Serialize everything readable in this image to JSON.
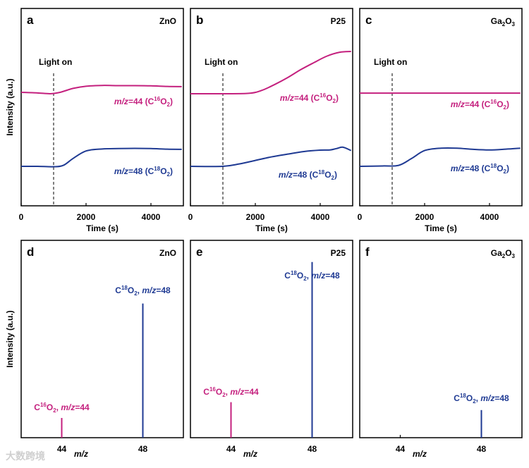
{
  "colors": {
    "pink": "#c4207e",
    "blue": "#1f3a93",
    "axis": "#000000"
  },
  "watermark": "大数跨境",
  "chart_data": [
    {
      "panel": "a",
      "type": "line",
      "material": "ZnO",
      "xlabel": "Time (s)",
      "ylabel": "Intensity (a.u.)",
      "xlim": [
        0,
        5000
      ],
      "ylim": [
        0,
        1
      ],
      "xticks": [
        0,
        2000,
        4000
      ],
      "annotation": "Light on",
      "light_on_x": 1000,
      "series": [
        {
          "name": "m/z=44 (C16O2)",
          "color": "pink",
          "label": {
            "i": "m/z",
            "a": "=44 (C",
            "sup": "16",
            "o": "O",
            "sub": "2",
            "c": ")"
          },
          "x": [
            0,
            500,
            900,
            1200,
            1600,
            2000,
            2500,
            3000,
            3500,
            4000,
            4500,
            4950
          ],
          "y": [
            0.575,
            0.572,
            0.568,
            0.575,
            0.595,
            0.606,
            0.61,
            0.609,
            0.609,
            0.608,
            0.605,
            0.604
          ]
        },
        {
          "name": "m/z=48 (C18O2)",
          "color": "blue",
          "label": {
            "i": "m/z",
            "a": "=48 (C",
            "sup": "18",
            "o": "O",
            "sub": "2",
            "c": ")"
          },
          "x": [
            0,
            500,
            1000,
            1300,
            1600,
            2000,
            2500,
            3000,
            3500,
            4000,
            4500,
            4950
          ],
          "y": [
            0.2,
            0.2,
            0.198,
            0.205,
            0.24,
            0.278,
            0.288,
            0.29,
            0.291,
            0.29,
            0.287,
            0.286
          ]
        }
      ]
    },
    {
      "panel": "b",
      "type": "line",
      "material": "P25",
      "xlabel": "Time (s)",
      "ylabel": "",
      "xlim": [
        0,
        5000
      ],
      "ylim": [
        0,
        1
      ],
      "xticks": [
        0,
        2000,
        4000
      ],
      "annotation": "Light on",
      "light_on_x": 1000,
      "series": [
        {
          "name": "m/z=44 (C16O2)",
          "color": "pink",
          "label": {
            "i": "m/z",
            "a": "=44 (C",
            "sup": "16",
            "o": "O",
            "sub": "2",
            "c": ")"
          },
          "x": [
            0,
            1000,
            1800,
            2200,
            2600,
            3000,
            3400,
            3800,
            4200,
            4600,
            4950
          ],
          "y": [
            0.568,
            0.568,
            0.57,
            0.585,
            0.615,
            0.65,
            0.69,
            0.725,
            0.758,
            0.778,
            0.782
          ]
        },
        {
          "name": "m/z=48 (C18O2)",
          "color": "blue",
          "label": {
            "i": "m/z",
            "a": "=48 (C",
            "sup": "18",
            "o": "O",
            "sub": "2",
            "c": ")"
          },
          "x": [
            0,
            1000,
            1500,
            2000,
            2500,
            3000,
            3500,
            4000,
            4300,
            4500,
            4700,
            4950
          ],
          "y": [
            0.2,
            0.2,
            0.212,
            0.23,
            0.248,
            0.262,
            0.275,
            0.282,
            0.283,
            0.29,
            0.297,
            0.28
          ]
        }
      ]
    },
    {
      "panel": "c",
      "type": "line",
      "material": "Ga2O3",
      "xlabel": "Time (s)",
      "ylabel": "",
      "xlim": [
        0,
        5000
      ],
      "ylim": [
        0,
        1
      ],
      "xticks": [
        0,
        2000,
        4000
      ],
      "annotation": "Light on",
      "light_on_x": 1000,
      "series": [
        {
          "name": "m/z=44 (C16O2)",
          "color": "pink",
          "label": {
            "i": "m/z",
            "a": "=44 (C",
            "sup": "16",
            "o": "O",
            "sub": "2",
            "c": ")"
          },
          "x": [
            0,
            2500,
            4950
          ],
          "y": [
            0.571,
            0.571,
            0.571
          ]
        },
        {
          "name": "m/z=48 (C18O2)",
          "color": "blue",
          "label": {
            "i": "m/z",
            "a": "=48 (C",
            "sup": "18",
            "o": "O",
            "sub": "2",
            "c": ")"
          },
          "x": [
            0,
            700,
            1200,
            1600,
            2000,
            2500,
            3000,
            3500,
            4000,
            4500,
            4950
          ],
          "y": [
            0.2,
            0.202,
            0.205,
            0.24,
            0.28,
            0.292,
            0.292,
            0.286,
            0.283,
            0.287,
            0.292
          ]
        }
      ]
    },
    {
      "panel": "d",
      "type": "bar",
      "material": "ZnO",
      "xlabel": "m/z",
      "ylabel": "Intensity (a.u.)",
      "xlim": [
        42,
        50
      ],
      "ylim": [
        0,
        1
      ],
      "xticks": [
        44,
        48
      ],
      "sticks": [
        {
          "x": 44,
          "value": 0.1,
          "color": "pink",
          "label": {
            "c": "C",
            "sup": "16",
            "o": "O",
            "sub": "2",
            "sep": ", ",
            "i": "m/z",
            "v": "=44"
          }
        },
        {
          "x": 48,
          "value": 0.68,
          "color": "blue",
          "label": {
            "c": "C",
            "sup": "18",
            "o": "O",
            "sub": "2",
            "sep": ", ",
            "i": "m/z",
            "v": "=48"
          }
        }
      ]
    },
    {
      "panel": "e",
      "type": "bar",
      "material": "P25",
      "xlabel": "m/z",
      "ylabel": "",
      "xlim": [
        42,
        50
      ],
      "ylim": [
        0,
        1
      ],
      "xticks": [
        44,
        48
      ],
      "sticks": [
        {
          "x": 44,
          "value": 0.18,
          "color": "pink",
          "label": {
            "c": "C",
            "sup": "16",
            "o": "O",
            "sub": "2",
            "sep": ", ",
            "i": "m/z",
            "v": "=44"
          }
        },
        {
          "x": 48,
          "value": 0.89,
          "color": "blue",
          "label": {
            "c": "C",
            "sup": "18",
            "o": "O",
            "sub": "2",
            "sep": ", ",
            "i": "m/z",
            "v": "=48"
          }
        }
      ]
    },
    {
      "panel": "f",
      "type": "bar",
      "material": "Ga2O3",
      "xlabel": "m/z",
      "ylabel": "",
      "xlim": [
        42,
        50
      ],
      "ylim": [
        0,
        1
      ],
      "xticks": [
        44,
        48
      ],
      "sticks": [
        {
          "x": 48,
          "value": 0.14,
          "color": "blue",
          "label": {
            "c": "C",
            "sup": "18",
            "o": "O",
            "sub": "2",
            "sep": ", ",
            "i": "m/z",
            "v": "=48"
          }
        }
      ]
    }
  ]
}
